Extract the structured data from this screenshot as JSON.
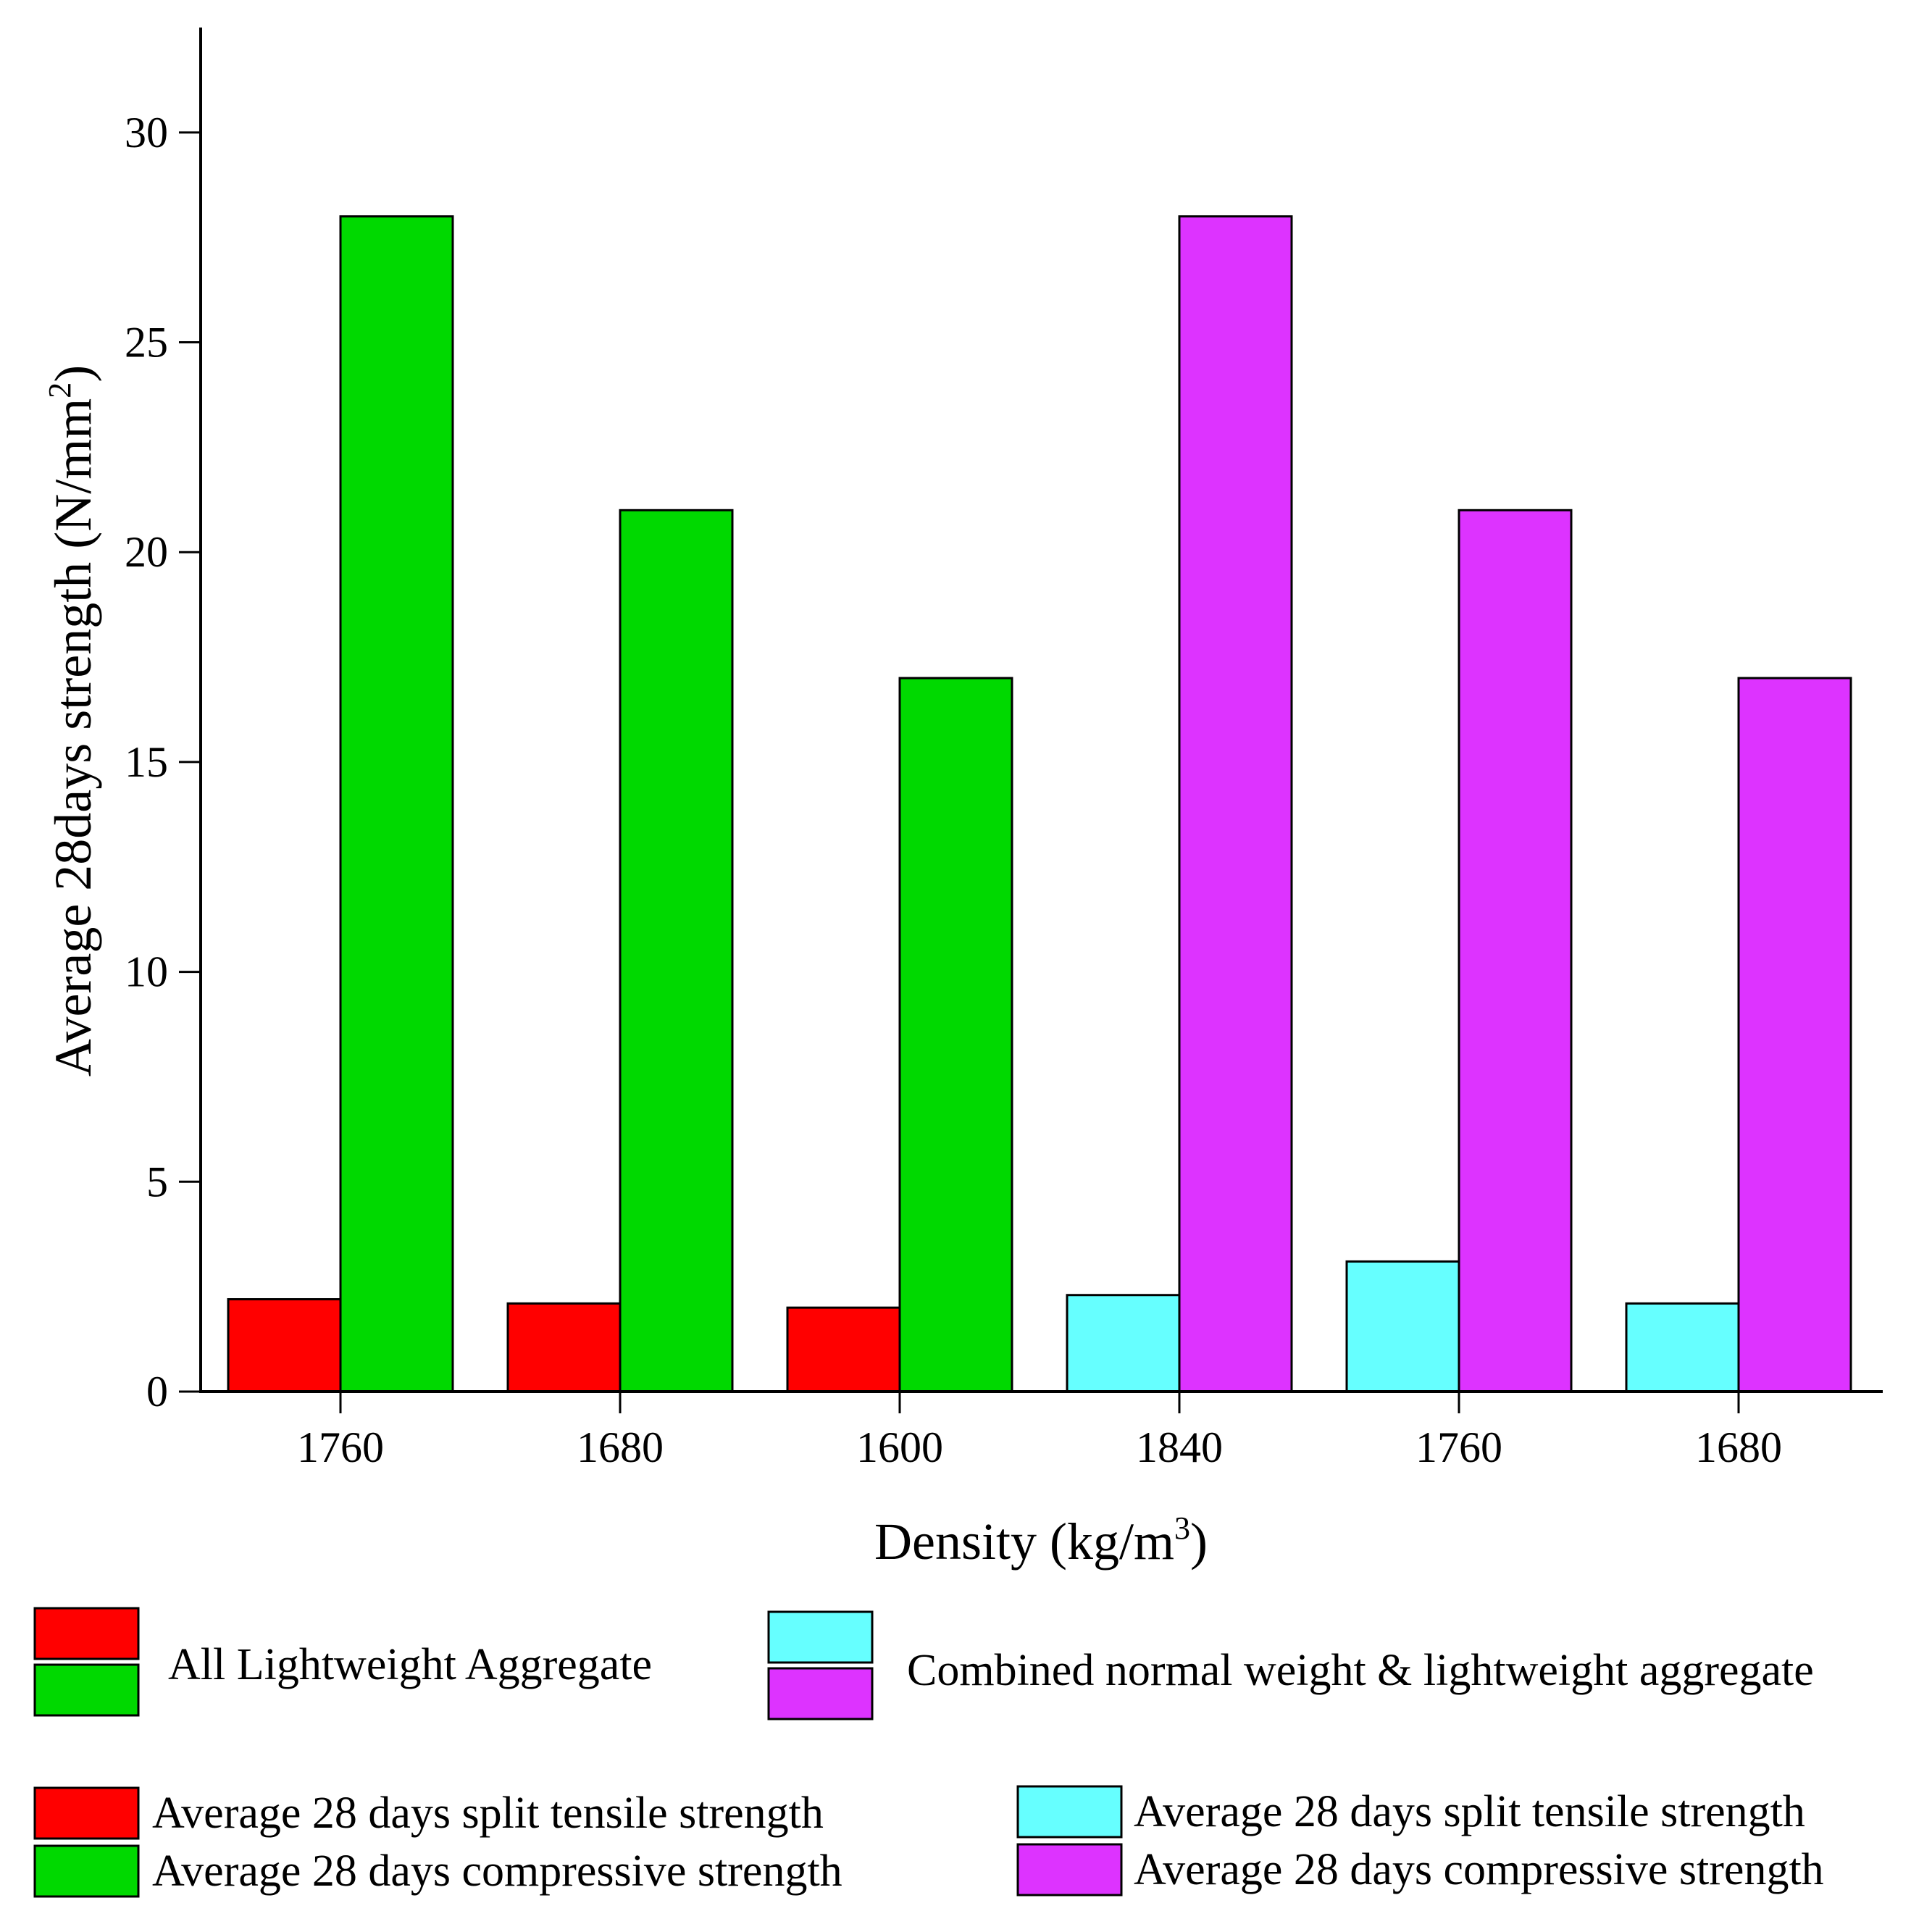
{
  "chart_data": {
    "type": "bar",
    "categories": [
      "1760",
      "1680",
      "1600",
      "1840",
      "1760",
      "1680"
    ],
    "ylabel": "Average 28days strength (N/mm",
    "ylabel_sup": "2",
    "ylabel_close": ")",
    "xlabel": "Density (kg/m",
    "xlabel_sup": "3",
    "xlabel_close": ")",
    "ylim": [
      0,
      32.5
    ],
    "yticks": [
      "0",
      "5",
      "10",
      "15",
      "20",
      "25",
      "30"
    ],
    "grid": false,
    "groups": [
      {
        "label": "All Lightweight Aggregate",
        "category_indices": [
          0,
          1,
          2
        ],
        "series": [
          {
            "name": "Average 28 days split tensile strength",
            "color": "#ff0000",
            "values": [
              2.2,
              2.1,
              2.0
            ]
          },
          {
            "name": "Average 28 days compressive strength",
            "color": "#00d900",
            "values": [
              28,
              21,
              17
            ]
          }
        ]
      },
      {
        "label": "Combined normal weight & lightweight aggregate",
        "category_indices": [
          3,
          4,
          5
        ],
        "series": [
          {
            "name": "Average 28 days split tensile strength",
            "color": "#66ffff",
            "values": [
              2.3,
              3.1,
              2.1
            ]
          },
          {
            "name": "Average 28 days compressive strength",
            "color": "#dd33ff",
            "values": [
              28,
              21,
              17
            ]
          }
        ]
      }
    ]
  }
}
